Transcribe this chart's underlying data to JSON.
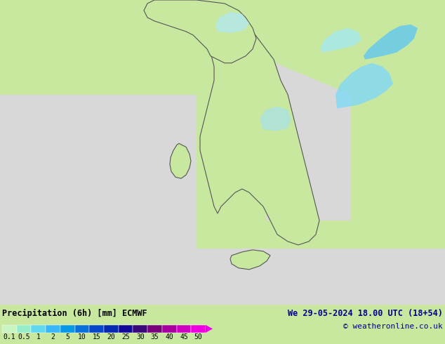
{
  "title_label": "Precipitation (6h) [mm] ECMWF",
  "date_text": "We 29-05-2024 18.00 UTC (18+54)",
  "credit_text": "© weatheronline.co.uk",
  "colorbar_levels": [
    "0.1",
    "0.5",
    "1",
    "2",
    "5",
    "10",
    "15",
    "20",
    "25",
    "30",
    "35",
    "40",
    "45",
    "50"
  ],
  "colorbar_colors": [
    "#c8f5c0",
    "#96eec8",
    "#60d8f0",
    "#38b8f8",
    "#0898e8",
    "#0870d8",
    "#0848c8",
    "#0428b0",
    "#100898",
    "#380878",
    "#780078",
    "#a800a0",
    "#d000c0",
    "#f000e0"
  ],
  "map_land_color": "#c8e8a0",
  "map_sea_color": "#d8d8d8",
  "bottom_bg_color": "#c8e8a0",
  "title_color": "#000000",
  "date_color": "#00008b",
  "credit_color": "#00008b",
  "triangle_color": "#f000e8",
  "title_fontsize": 8.5,
  "date_fontsize": 8.5,
  "tick_fontsize": 7,
  "fig_width": 6.34,
  "fig_height": 4.9,
  "dpi": 100
}
